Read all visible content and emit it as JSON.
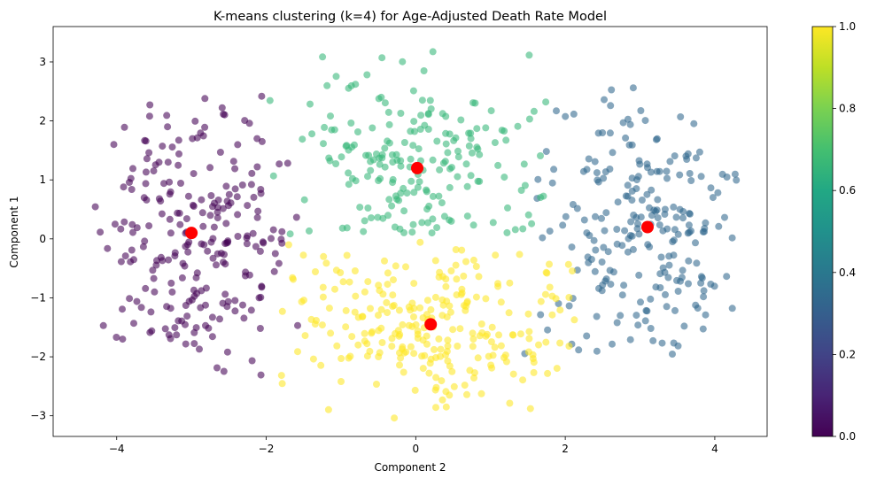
{
  "chart_data": {
    "type": "scatter",
    "title": "K-means clustering (k=4) for Age-Adjusted Death Rate Model",
    "xlabel": "Component 2",
    "ylabel": "Component 1",
    "xlim": [
      -4.85,
      4.7
    ],
    "ylim": [
      -3.35,
      3.6
    ],
    "x_ticks": [
      -4,
      -2,
      0,
      2,
      4
    ],
    "y_ticks": [
      -3,
      -2,
      -1,
      0,
      1,
      2,
      3
    ],
    "x_tick_labels": [
      "−4",
      "−2",
      "0",
      "2",
      "4"
    ],
    "y_tick_labels": [
      "−3",
      "−2",
      "−1",
      "0",
      "1",
      "2",
      "3"
    ],
    "grid": false,
    "colormap": "viridis",
    "colorbar": {
      "range": [
        0.0,
        1.0
      ],
      "ticks": [
        0.0,
        0.2,
        0.4,
        0.6,
        0.8,
        1.0
      ],
      "tick_labels": [
        "0.0",
        "0.2",
        "0.4",
        "0.6",
        "0.8",
        "1.0"
      ]
    },
    "clusters": [
      {
        "label": 0,
        "color": "#440154",
        "center": [
          -3.0,
          0.1
        ],
        "x_range": [
          -4.45,
          -1.55
        ],
        "y_range": [
          -2.35,
          2.45
        ],
        "n": 240
      },
      {
        "label": 1,
        "color": "#31688e",
        "center": [
          3.1,
          0.2
        ],
        "x_range": [
          1.45,
          4.3
        ],
        "y_range": [
          -2.05,
          2.75
        ],
        "n": 230
      },
      {
        "label": 2,
        "color": "#35b779",
        "center": [
          0.02,
          1.2
        ],
        "x_range": [
          -1.95,
          1.75
        ],
        "y_range": [
          0.05,
          3.3
        ],
        "n": 200
      },
      {
        "label": 3,
        "color": "#fde725",
        "center": [
          0.2,
          -1.45
        ],
        "x_range": [
          -2.0,
          2.15
        ],
        "y_range": [
          -3.05,
          -0.05
        ],
        "n": 260
      }
    ],
    "centers": [
      [
        -3.0,
        0.1
      ],
      [
        3.1,
        0.2
      ],
      [
        0.02,
        1.2
      ],
      [
        0.2,
        -1.45
      ]
    ],
    "center_color": "#ff0000"
  }
}
